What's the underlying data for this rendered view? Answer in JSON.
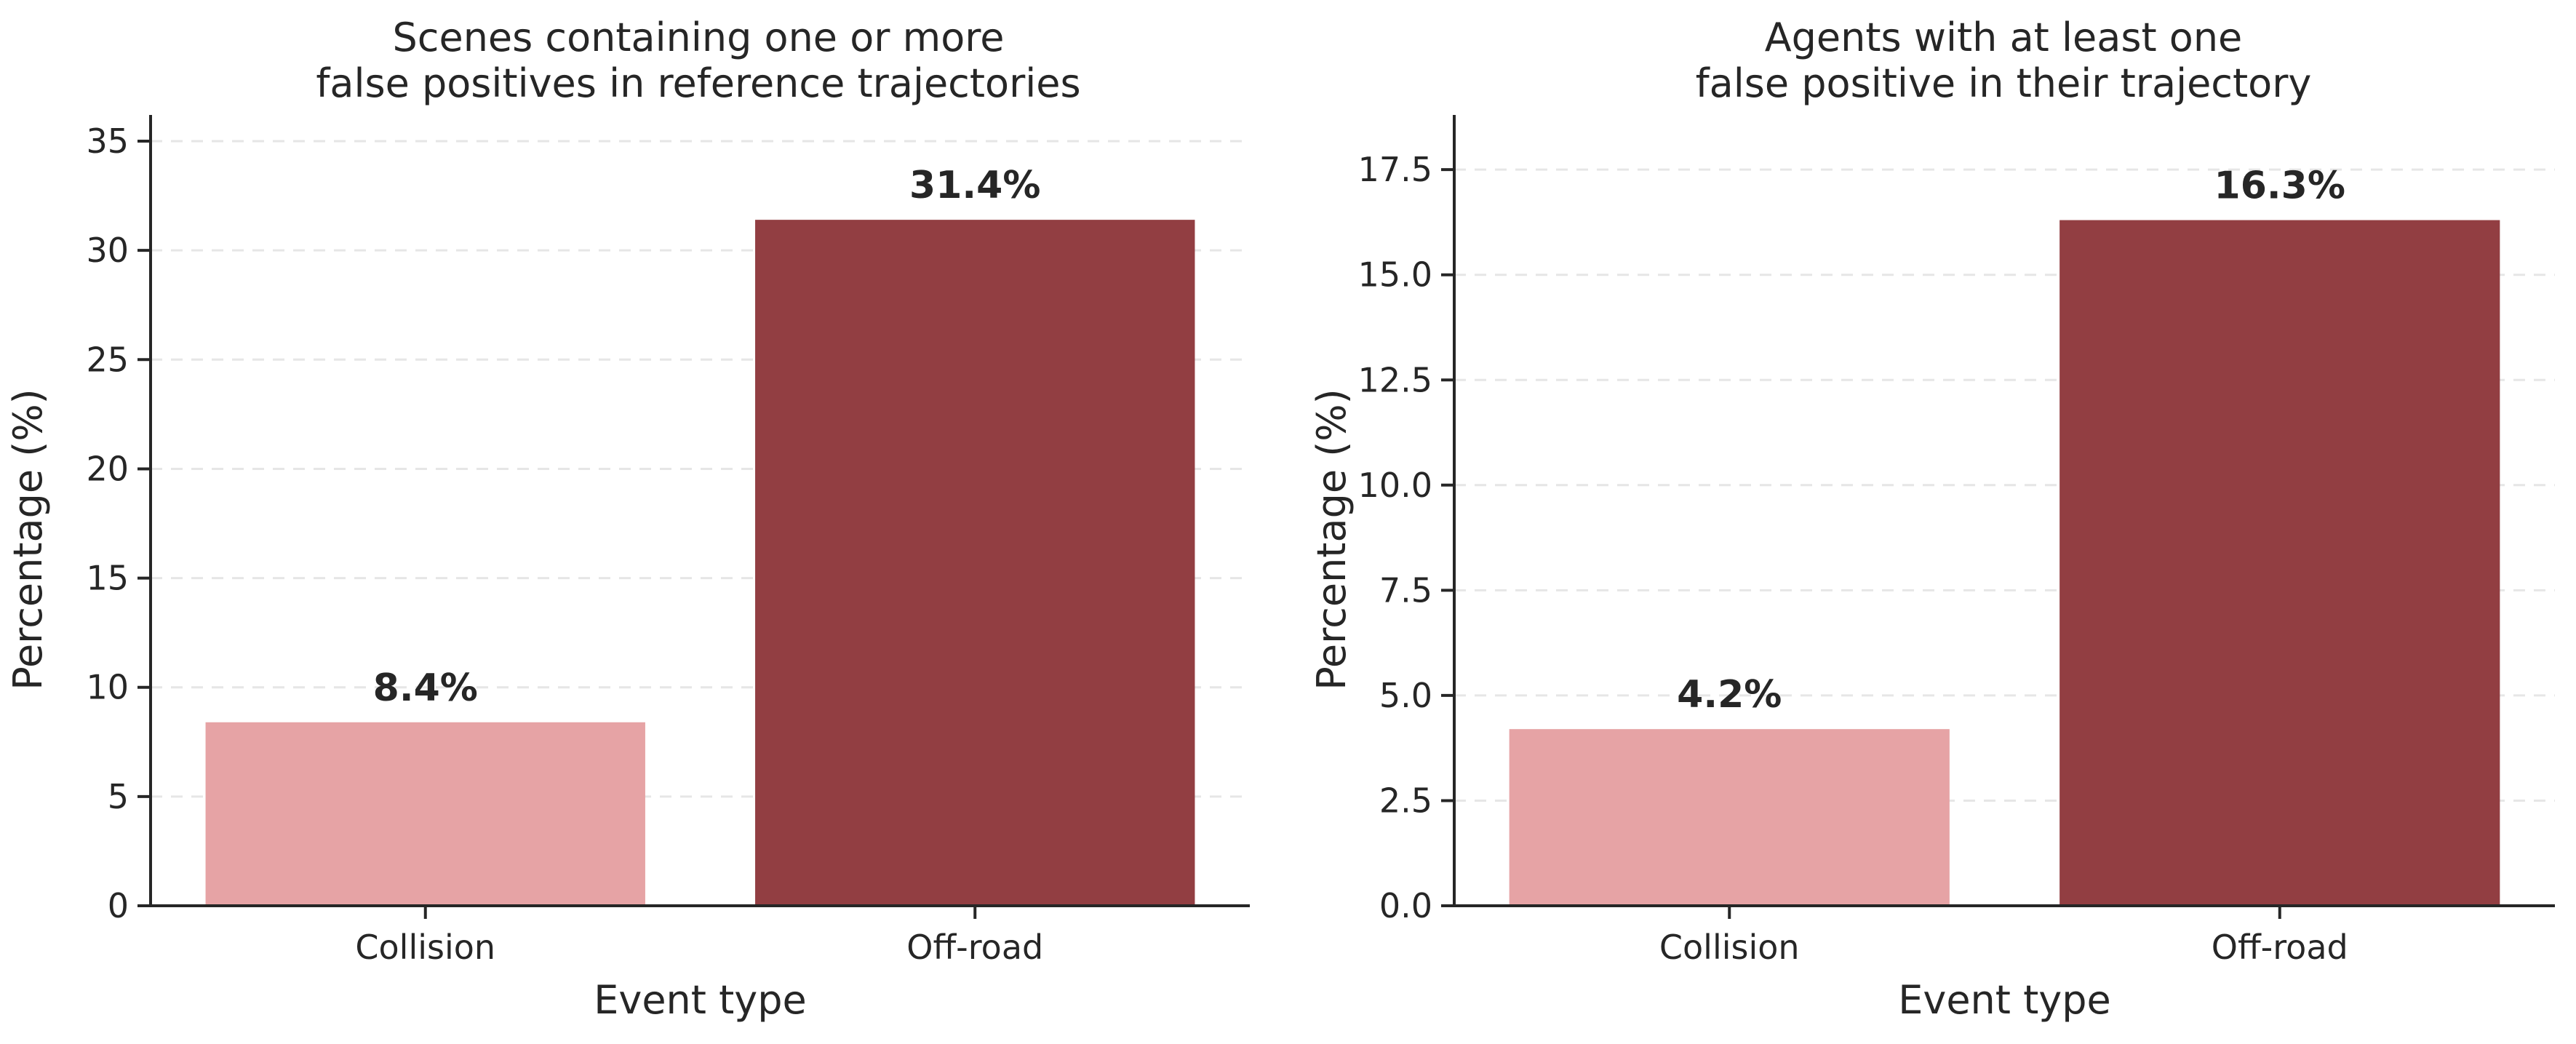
{
  "chart_data": [
    {
      "type": "bar",
      "title_lines": [
        "Scenes containing one or more",
        "false positives in reference trajectories"
      ],
      "xlabel": "Event type",
      "ylabel": "Percentage (%)",
      "categories": [
        "Collision",
        "Off-road"
      ],
      "values": [
        8.4,
        31.4
      ],
      "data_labels": [
        "8.4%",
        "31.4%"
      ],
      "bar_colors": [
        "#e6a3a5",
        "#923e42"
      ],
      "ylim": [
        0,
        36.2
      ],
      "yticks": [
        0,
        5,
        10,
        15,
        20,
        25,
        30,
        35
      ],
      "ytick_labels": [
        "0",
        "5",
        "10",
        "15",
        "20",
        "25",
        "30",
        "35"
      ],
      "grid": "horizontal-dashed"
    },
    {
      "type": "bar",
      "title_lines": [
        "Agents with at least one",
        "false positive in their trajectory"
      ],
      "xlabel": "Event type",
      "ylabel": "Percentage (%)",
      "categories": [
        "Collision",
        "Off-road"
      ],
      "values": [
        4.2,
        16.3
      ],
      "data_labels": [
        "4.2%",
        "16.3%"
      ],
      "bar_colors": [
        "#e6a3a5",
        "#923e42"
      ],
      "ylim": [
        0,
        18.8
      ],
      "yticks": [
        0,
        2.5,
        5,
        7.5,
        10,
        12.5,
        15,
        17.5
      ],
      "ytick_labels": [
        "0.0",
        "2.5",
        "5.0",
        "7.5",
        "10.0",
        "12.5",
        "15.0",
        "17.5"
      ],
      "grid": "horizontal-dashed"
    }
  ]
}
